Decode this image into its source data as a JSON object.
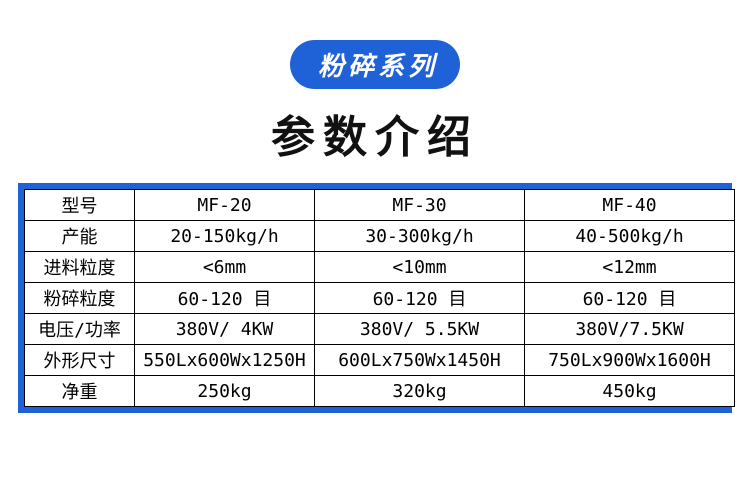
{
  "badge": {
    "text": "粉碎系列",
    "bg": "#1f61d6",
    "color": "#ffffff",
    "fontsize": "26px"
  },
  "title": {
    "text": "参数介绍",
    "color": "#111111",
    "fontsize": "44px"
  },
  "table": {
    "outer_border_color": "#1f61d6",
    "outer_border_width": "6px",
    "inner_border_color": "#000000",
    "inner_border_width": "1px",
    "header_bg": "#ffffff",
    "cell_bg": "#ffffff",
    "text_color": "#000000",
    "fontsize": "18px",
    "columns": [
      "型号",
      "MF-20",
      "MF-30",
      "MF-40"
    ],
    "rows": [
      [
        "产能",
        "20-150kg/h",
        "30-300kg/h",
        "40-500kg/h"
      ],
      [
        "进料粒度",
        "<6mm",
        "<10mm",
        "<12mm"
      ],
      [
        "粉碎粒度",
        "60-120 目",
        "60-120 目",
        "60-120 目"
      ],
      [
        "电压/功率",
        "380V/ 4KW",
        "380V/ 5.5KW",
        "380V/7.5KW"
      ],
      [
        "外形尺寸",
        "550Lx600Wx1250H",
        "600Lx750Wx1450H",
        "750Lx900Wx1600H"
      ],
      [
        "净重",
        "250kg",
        "320kg",
        "450kg"
      ]
    ]
  }
}
